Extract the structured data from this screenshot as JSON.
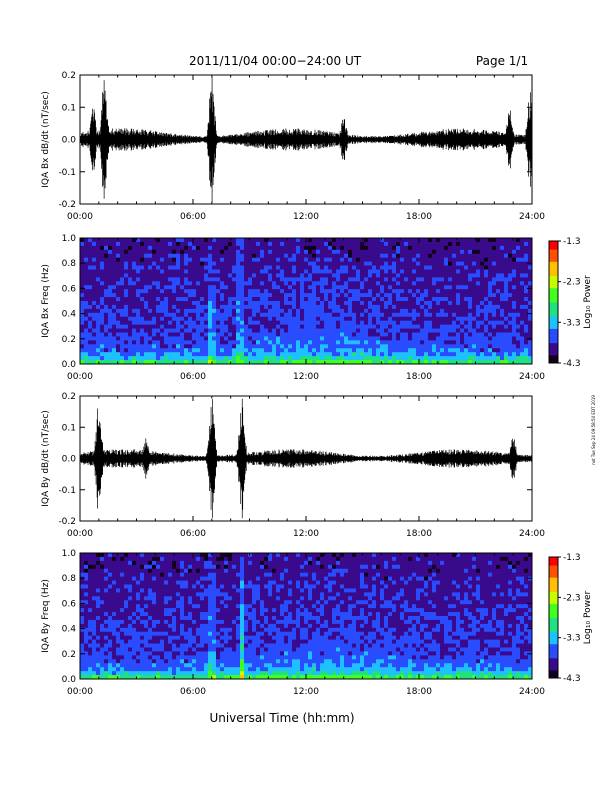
{
  "header": {
    "title": "2011/11/04  00:00−24:00 UT",
    "page": "Page 1/1"
  },
  "side_stamp": "not Tue Sep 24 09:58:50 EDT 2019",
  "xlabel": "Universal Time (hh:mm)",
  "time_ticks": [
    "00:00",
    "06:00",
    "12:00",
    "18:00",
    "24:00"
  ],
  "colorbar": {
    "title": "Log₁₀ Power",
    "ticks": [
      "-1.3",
      "-2.3",
      "-3.3",
      "-4.3"
    ],
    "colormap": [
      "#12001e",
      "#3a0a8c",
      "#2a4cff",
      "#1fc0ff",
      "#20e080",
      "#40ff20",
      "#c8ff00",
      "#ffc000",
      "#ff5000",
      "#ff0000"
    ]
  },
  "chart_data": [
    {
      "type": "line",
      "ylabel": "IQA Bx dB/dt (nT/sec)",
      "xlim": [
        "00:00",
        "24:00"
      ],
      "ylim": [
        -0.2,
        0.2
      ],
      "yticks": [
        "0.2",
        "0.1",
        "0.0",
        "-0.1",
        "-0.2"
      ],
      "baseline_amplitude": 0.035,
      "activity": [
        {
          "t_hours": 1.3,
          "peak": 0.2
        },
        {
          "t_hours": 0.7,
          "peak": 0.1
        },
        {
          "t_hours": 7.0,
          "peak": 0.2
        },
        {
          "t_hours": 14.0,
          "peak": 0.08
        },
        {
          "t_hours": 22.8,
          "peak": 0.11
        },
        {
          "t_hours": 23.9,
          "peak": 0.15
        }
      ]
    },
    {
      "type": "heatmap",
      "ylabel": "IQA Bx Freq (Hz)",
      "xlim": [
        "00:00",
        "24:00"
      ],
      "ylim": [
        0.0,
        1.0
      ],
      "yticks": [
        "1.0",
        "0.8",
        "0.6",
        "0.4",
        "0.2",
        "0.0"
      ],
      "zlim": [
        -4.3,
        -1.3
      ],
      "bright_columns_hours": [
        7.0,
        8.5
      ]
    },
    {
      "type": "line",
      "ylabel": "IQA By dB/dt (nT/sec)",
      "xlim": [
        "00:00",
        "24:00"
      ],
      "ylim": [
        -0.2,
        0.2
      ],
      "yticks": [
        "0.2",
        "0.1",
        "0.0",
        "-0.1",
        "-0.2"
      ],
      "baseline_amplitude": 0.03,
      "activity": [
        {
          "t_hours": 1.0,
          "peak": 0.19
        },
        {
          "t_hours": 3.5,
          "peak": 0.07
        },
        {
          "t_hours": 7.0,
          "peak": 0.2
        },
        {
          "t_hours": 8.6,
          "peak": 0.2
        },
        {
          "t_hours": 23.0,
          "peak": 0.09
        }
      ]
    },
    {
      "type": "heatmap",
      "ylabel": "IQA By Freq (Hz)",
      "xlim": [
        "00:00",
        "24:00"
      ],
      "ylim": [
        0.0,
        1.0
      ],
      "yticks": [
        "1.0",
        "0.8",
        "0.6",
        "0.4",
        "0.2",
        "0.0"
      ],
      "zlim": [
        -4.3,
        -1.3
      ],
      "bright_columns_hours": [
        7.0,
        8.6
      ]
    }
  ]
}
